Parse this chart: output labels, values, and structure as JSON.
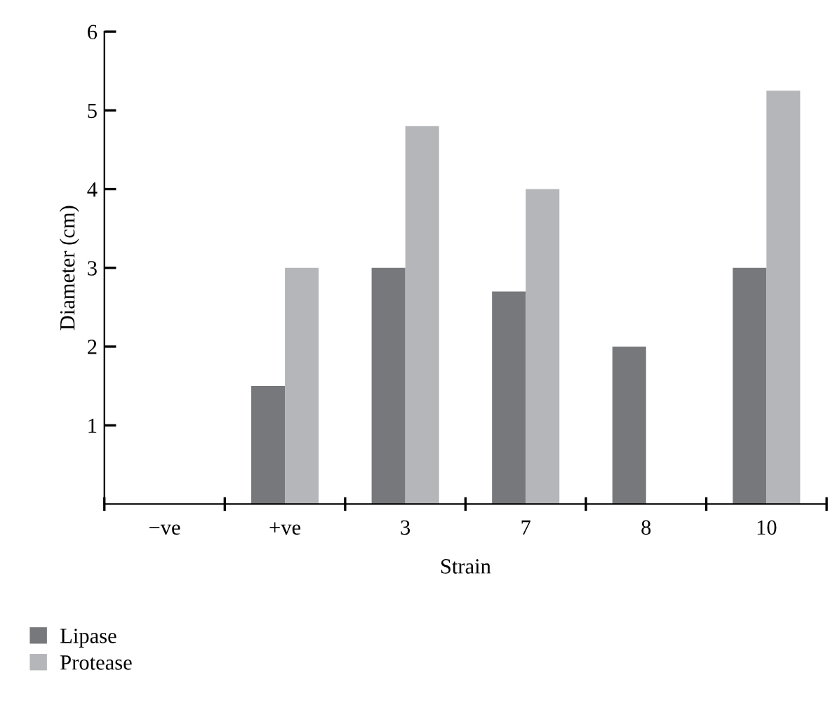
{
  "chart_data": {
    "type": "bar",
    "xlabel": "Strain",
    "ylabel": "Diameter (cm)",
    "categories": [
      "−ve",
      "+ve",
      "3",
      "7",
      "8",
      "10"
    ],
    "series": [
      {
        "name": "Lipase",
        "color": "#77787c",
        "values": [
          0,
          1.5,
          3.0,
          2.7,
          2.0,
          3.0
        ]
      },
      {
        "name": "Protease",
        "color": "#b5b6ba",
        "values": [
          0,
          3.0,
          4.8,
          4.0,
          0,
          5.25
        ]
      }
    ],
    "ylim": [
      0,
      6
    ],
    "yticks": [
      1,
      2,
      3,
      4,
      5,
      6
    ],
    "grid": false,
    "legend": "bottom left"
  }
}
